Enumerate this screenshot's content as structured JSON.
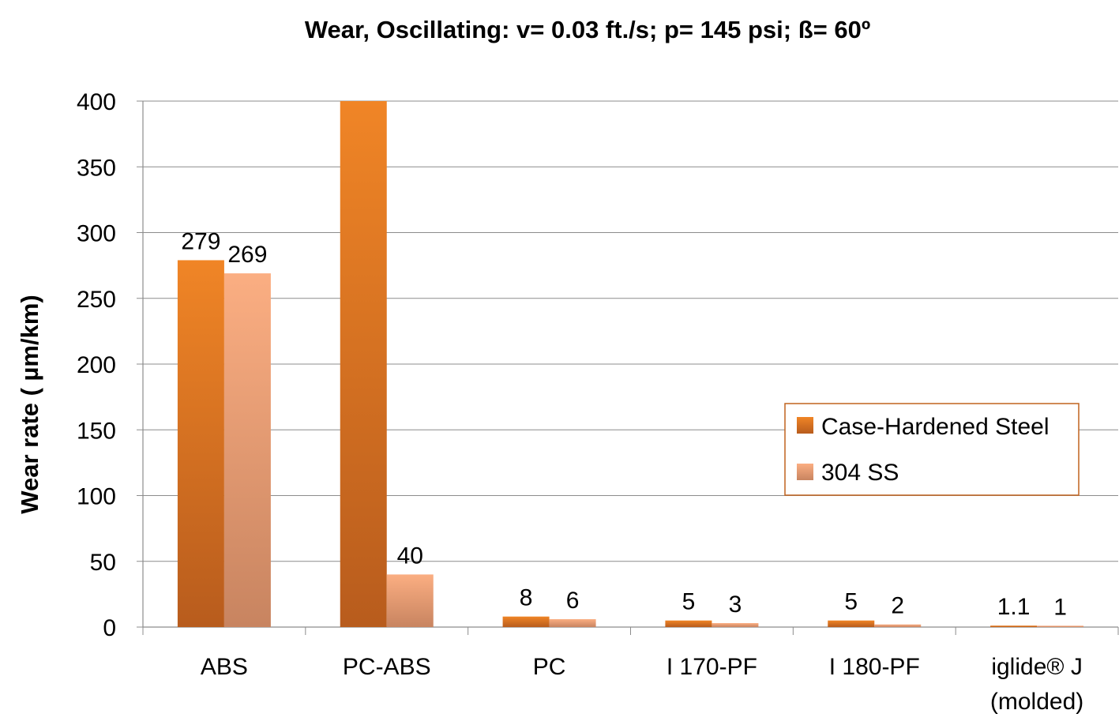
{
  "chart_data": {
    "type": "bar",
    "title": "Wear, Oscillating: v= 0.03 ft./s; p= 145 psi;  ß= 60º",
    "xlabel": "",
    "ylabel": "Wear rate ( µm/km)",
    "ylim": [
      0,
      400
    ],
    "yticks": [
      0,
      50,
      100,
      150,
      200,
      250,
      300,
      350,
      400
    ],
    "grid": true,
    "legend_position": "right-middle",
    "categories": [
      [
        "ABS"
      ],
      [
        "PC-ABS"
      ],
      [
        "PC"
      ],
      [
        "I 170-PF"
      ],
      [
        "I 180-PF"
      ],
      [
        "iglide® J",
        "(molded)"
      ]
    ],
    "series": [
      {
        "name": "Case-Hardened Steel",
        "values": [
          279,
          400,
          8,
          5,
          5,
          1.1
        ],
        "labels": [
          "279",
          "",
          "8",
          "5",
          "5",
          "1.1"
        ],
        "color_top": "#f08526",
        "color_bottom": "#b85c1d"
      },
      {
        "name": "304 SS",
        "values": [
          269,
          40,
          6,
          3,
          2,
          1
        ],
        "labels": [
          "269",
          "40",
          "6",
          "3",
          "2",
          "1"
        ],
        "color_top": "#fbae82",
        "color_bottom": "#c88460"
      }
    ],
    "colors": {
      "grid": "#8c8c8c",
      "axis": "#8c8c8c",
      "legend_border": "#c0631f"
    }
  }
}
